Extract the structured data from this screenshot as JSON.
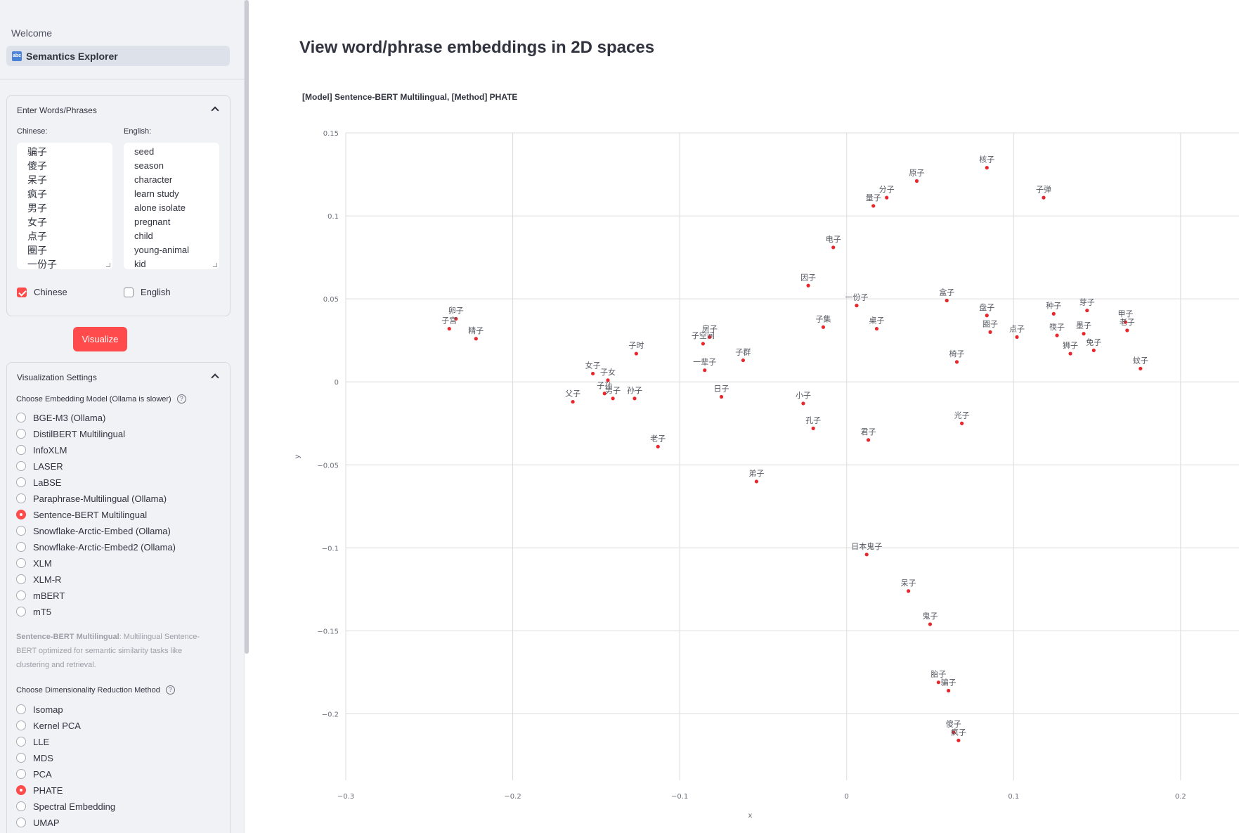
{
  "sidebar": {
    "nav_welcome": "Welcome",
    "nav_active_icon": "abc",
    "nav_active": "Semantics Explorer",
    "words_section": {
      "title": "Enter Words/Phrases",
      "chinese_label": "Chinese:",
      "english_label": "English:",
      "chinese_lines": [
        "骗子",
        "傻子",
        "呆子",
        "疯子",
        "男子",
        "女子",
        "点子",
        "圈子",
        "一份子"
      ],
      "english_lines": [
        "seed",
        "season",
        "character",
        "learn study",
        "alone isolate",
        "pregnant",
        "child",
        "young-animal",
        "kid"
      ],
      "chk_chinese": "Chinese",
      "chk_english": "English"
    },
    "visualize_button": "Visualize",
    "settings": {
      "title": "Visualization Settings",
      "model_label": "Choose Embedding Model (Ollama is slower)",
      "models": [
        "BGE-M3 (Ollama)",
        "DistilBERT Multilingual",
        "InfoXLM",
        "LASER",
        "LaBSE",
        "Paraphrase-Multilingual (Ollama)",
        "Sentence-BERT Multilingual",
        "Snowflake-Arctic-Embed (Ollama)",
        "Snowflake-Arctic-Embed2 (Ollama)",
        "XLM",
        "XLM-R",
        "mBERT",
        "mT5"
      ],
      "selected_model": "Sentence-BERT Multilingual",
      "model_desc_name": "Sentence-BERT Multilingual",
      "model_desc_text": ": Multilingual Sentence-BERT optimized for semantic similarity tasks like clustering and retrieval.",
      "method_label": "Choose Dimensionality Reduction Method",
      "methods": [
        "Isomap",
        "Kernel PCA",
        "LLE",
        "MDS",
        "PCA",
        "PHATE",
        "Spectral Embedding",
        "UMAP"
      ],
      "selected_method": "PHATE"
    }
  },
  "main": {
    "title": "View word/phrase embeddings in 2D spaces",
    "chart_title": "[Model] Sentence-BERT Multilingual, [Method] PHATE"
  },
  "colors": {
    "accent": "#ff4b4b",
    "point": "#e8262c",
    "grid": "#dcdcdc",
    "text": "#31333f"
  },
  "chart_data": {
    "type": "scatter",
    "xlabel": "x",
    "ylabel": "y",
    "xlim": [
      -0.3,
      0.235
    ],
    "ylim": [
      -0.24,
      0.15
    ],
    "xticks": [
      -0.3,
      -0.2,
      -0.1,
      0,
      0.1,
      0.2
    ],
    "xtick_labels": [
      "−0.3",
      "−0.2",
      "−0.1",
      "0",
      "0.1",
      "0.2"
    ],
    "yticks": [
      0.15,
      0.1,
      0.05,
      0,
      -0.05,
      -0.1,
      -0.15,
      -0.2
    ],
    "ytick_labels": [
      "0.15",
      "0.1",
      "0.05",
      "0",
      "−0.05",
      "−0.1",
      "−0.15",
      "−0.2"
    ],
    "grid": true,
    "points": [
      {
        "label": "核子",
        "x": 0.084,
        "y": 0.129
      },
      {
        "label": "原子",
        "x": 0.042,
        "y": 0.121
      },
      {
        "label": "分子",
        "x": 0.024,
        "y": 0.111
      },
      {
        "label": "量子",
        "x": 0.016,
        "y": 0.106
      },
      {
        "label": "子弹",
        "x": 0.118,
        "y": 0.111
      },
      {
        "label": "电子",
        "x": -0.008,
        "y": 0.081
      },
      {
        "label": "因子",
        "x": -0.023,
        "y": 0.058
      },
      {
        "label": "一份子",
        "x": 0.006,
        "y": 0.046
      },
      {
        "label": "盒子",
        "x": 0.06,
        "y": 0.049
      },
      {
        "label": "盘子",
        "x": 0.084,
        "y": 0.04
      },
      {
        "label": "种子",
        "x": 0.124,
        "y": 0.041
      },
      {
        "label": "芽子",
        "x": 0.144,
        "y": 0.043
      },
      {
        "label": "甲子",
        "x": 0.167,
        "y": 0.036
      },
      {
        "label": "卵子",
        "x": -0.234,
        "y": 0.038
      },
      {
        "label": "子宫",
        "x": -0.238,
        "y": 0.032
      },
      {
        "label": "精子",
        "x": -0.222,
        "y": 0.026
      },
      {
        "label": "子集",
        "x": -0.014,
        "y": 0.033
      },
      {
        "label": "桌子",
        "x": 0.018,
        "y": 0.032
      },
      {
        "label": "圈子",
        "x": 0.086,
        "y": 0.03
      },
      {
        "label": "点子",
        "x": 0.102,
        "y": 0.027
      },
      {
        "label": "筷子",
        "x": 0.126,
        "y": 0.028
      },
      {
        "label": "墨子",
        "x": 0.142,
        "y": 0.029
      },
      {
        "label": "老子",
        "x": 0.168,
        "y": 0.031
      },
      {
        "label": "房子",
        "x": -0.082,
        "y": 0.027
      },
      {
        "label": "子空间",
        "x": -0.086,
        "y": 0.023
      },
      {
        "label": "兔子",
        "x": 0.148,
        "y": 0.019
      },
      {
        "label": "狮子",
        "x": 0.134,
        "y": 0.017
      },
      {
        "label": "子时",
        "x": -0.126,
        "y": 0.017
      },
      {
        "label": "子群",
        "x": -0.062,
        "y": 0.013
      },
      {
        "label": "椅子",
        "x": 0.066,
        "y": 0.012
      },
      {
        "label": "蚊子",
        "x": 0.176,
        "y": 0.008
      },
      {
        "label": "一辈子",
        "x": -0.085,
        "y": 0.007
      },
      {
        "label": "女子",
        "x": -0.152,
        "y": 0.005
      },
      {
        "label": "子女",
        "x": -0.143,
        "y": 0.001
      },
      {
        "label": "子孙",
        "x": -0.145,
        "y": -0.007
      },
      {
        "label": "男子",
        "x": -0.14,
        "y": -0.01
      },
      {
        "label": "孙子",
        "x": -0.127,
        "y": -0.01
      },
      {
        "label": "父子",
        "x": -0.164,
        "y": -0.012
      },
      {
        "label": "日子",
        "x": -0.075,
        "y": -0.009
      },
      {
        "label": "小子",
        "x": -0.026,
        "y": -0.013
      },
      {
        "label": "光子",
        "x": 0.069,
        "y": -0.025
      },
      {
        "label": "孔子",
        "x": -0.02,
        "y": -0.028
      },
      {
        "label": "君子",
        "x": 0.013,
        "y": -0.035
      },
      {
        "label": "老子",
        "x": -0.113,
        "y": -0.039
      },
      {
        "label": "弟子",
        "x": -0.054,
        "y": -0.06
      },
      {
        "label": "日本鬼子",
        "x": 0.012,
        "y": -0.104
      },
      {
        "label": "呆子",
        "x": 0.037,
        "y": -0.126
      },
      {
        "label": "鬼子",
        "x": 0.05,
        "y": -0.146
      },
      {
        "label": "胎子",
        "x": 0.055,
        "y": -0.181
      },
      {
        "label": "骗子",
        "x": 0.061,
        "y": -0.186
      },
      {
        "label": "傻子",
        "x": 0.064,
        "y": -0.211
      },
      {
        "label": "疯子",
        "x": 0.067,
        "y": -0.216
      }
    ]
  }
}
